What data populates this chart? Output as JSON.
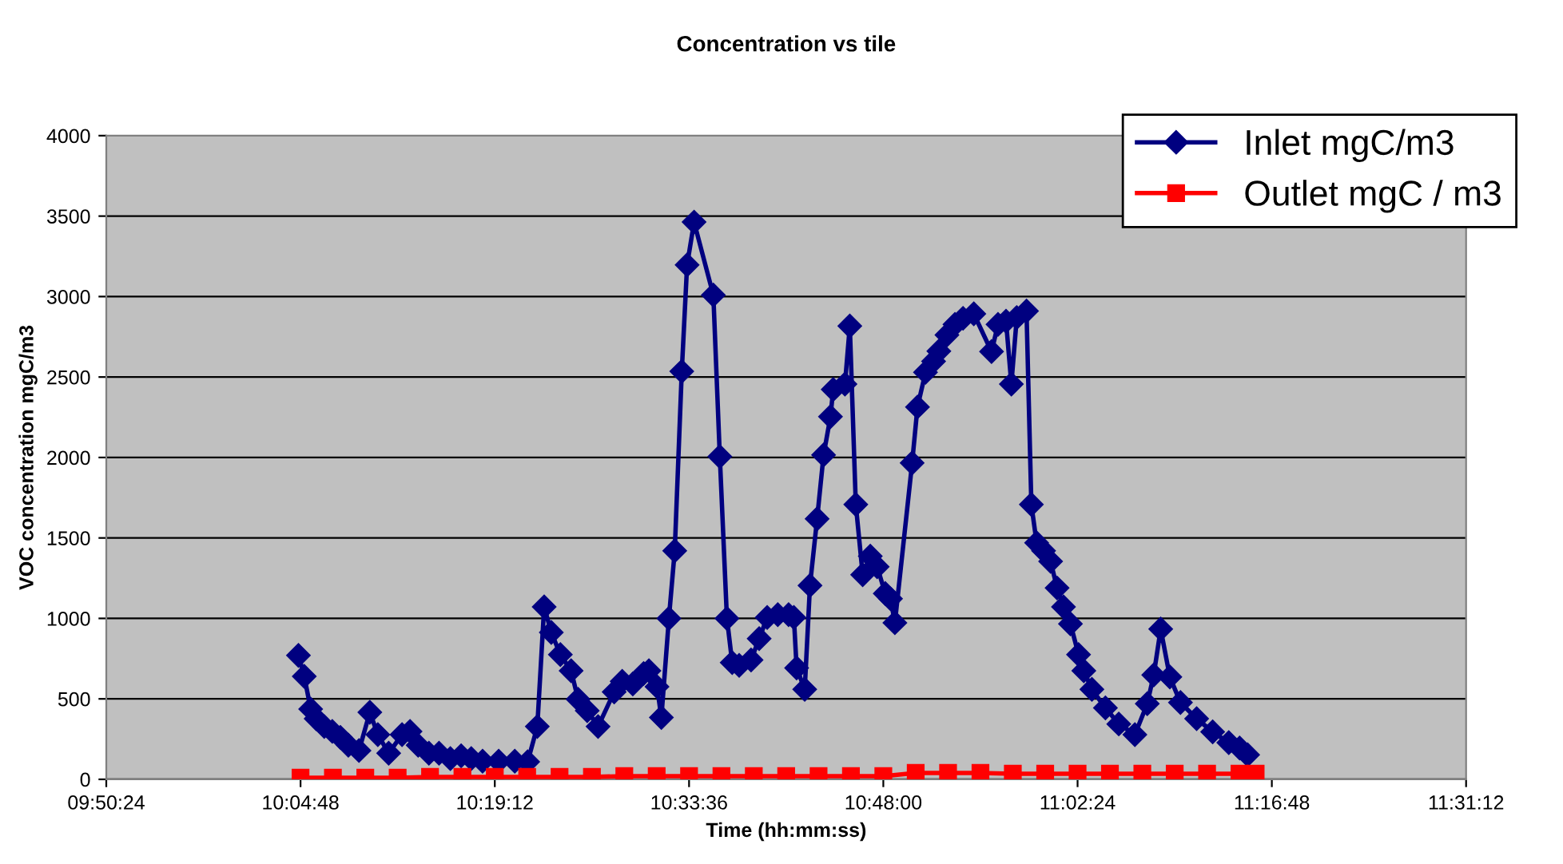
{
  "chart_data": {
    "type": "line",
    "title": "Concentration vs tile",
    "xlabel": "Time (hh:mm:ss)",
    "ylabel": "VOC concentration mgC/m3",
    "xlim": [
      9.84,
      11.52
    ],
    "xticks": [
      {
        "value": 9.84,
        "label": "09:50:24"
      },
      {
        "value": 10.08,
        "label": "10:04:48"
      },
      {
        "value": 10.32,
        "label": "10:19:12"
      },
      {
        "value": 10.56,
        "label": "10:33:36"
      },
      {
        "value": 10.8,
        "label": "10:48:00"
      },
      {
        "value": 11.04,
        "label": "11:02:24"
      },
      {
        "value": 11.28,
        "label": "11:16:48"
      },
      {
        "value": 11.52,
        "label": "11:31:12"
      }
    ],
    "ylim": [
      0,
      4000
    ],
    "yticks": [
      0,
      500,
      1000,
      1500,
      2000,
      2500,
      3000,
      3500,
      4000
    ],
    "grid": "y",
    "legend": "top right",
    "series": [
      {
        "name": "Inlet mgC/m3",
        "color": "#000080",
        "marker": "diamond",
        "x": [
          10.0774,
          10.0846,
          10.0925,
          10.0993,
          10.1093,
          10.1192,
          10.1292,
          10.1391,
          10.1522,
          10.1656,
          10.1755,
          10.1889,
          10.2054,
          10.2153,
          10.2253,
          10.2386,
          10.2511,
          10.2651,
          10.2784,
          10.2909,
          10.3049,
          10.3248,
          10.3447,
          10.3606,
          10.3725,
          10.381,
          10.3898,
          10.401,
          10.4143,
          10.4229,
          10.4342,
          10.4476,
          10.4675,
          10.4774,
          10.4905,
          10.5039,
          10.5104,
          10.5204,
          10.5258,
          10.5351,
          10.5423,
          10.551,
          10.5576,
          10.5662,
          10.59,
          10.598,
          10.6068,
          10.6133,
          10.6219,
          10.6366,
          10.6466,
          10.6565,
          10.6696,
          10.683,
          10.6895,
          10.6929,
          10.7029,
          10.7094,
          10.7182,
          10.7262,
          10.7347,
          10.7381,
          10.7526,
          10.7586,
          10.766,
          10.7745,
          10.7839,
          10.7924,
          10.8024,
          10.8089,
          10.8143,
          10.8356,
          10.8422,
          10.8521,
          10.8621,
          10.8686,
          10.8786,
          10.8885,
          10.8985,
          10.9118,
          10.9337,
          10.9417,
          10.9516,
          10.9582,
          10.9649,
          10.9769,
          10.9829,
          10.9894,
          10.998,
          11.0067,
          11.0147,
          11.0226,
          11.0312,
          11.0412,
          11.0477,
          11.0577,
          11.0744,
          11.0909,
          11.1108,
          11.1261,
          11.1341,
          11.1427,
          11.154,
          11.1671,
          11.1871,
          11.2069,
          11.2268,
          11.2402,
          11.2501
        ],
        "values": [
          770,
          640,
          437,
          377,
          328,
          298,
          261,
          212,
          179,
          417,
          278,
          162,
          278,
          298,
          212,
          162,
          162,
          129,
          146,
          129,
          113,
          113,
          113,
          109,
          328,
          1072,
          913,
          775,
          675,
          497,
          427,
          328,
          543,
          609,
          593,
          658,
          675,
          576,
          384,
          1000,
          1420,
          2535,
          3197,
          3463,
          3009,
          2006,
          1000,
          725,
          708,
          742,
          874,
          1006,
          1023,
          1023,
          1006,
          692,
          559,
          1205,
          1619,
          2016,
          2254,
          2423,
          2456,
          2817,
          1708,
          1271,
          1387,
          1321,
          1155,
          1122,
          973,
          1966,
          2314,
          2529,
          2598,
          2661,
          2761,
          2827,
          2865,
          2893,
          2658,
          2827,
          2847,
          2456,
          2870,
          2910,
          1708,
          1470,
          1420,
          1354,
          1189,
          1072,
          966,
          775,
          675,
          559,
          444,
          344,
          278,
          470,
          649,
          934,
          636,
          477,
          377,
          295,
          228,
          195,
          152
        ]
      },
      {
        "name": "Outlet mgC / m3",
        "color": "#ff0000",
        "marker": "square",
        "x": [
          10.08,
          10.12,
          10.16,
          10.2,
          10.24,
          10.28,
          10.32,
          10.36,
          10.4,
          10.44,
          10.48,
          10.52,
          10.56,
          10.6,
          10.64,
          10.68,
          10.72,
          10.76,
          10.8,
          10.84,
          10.88,
          10.92,
          10.96,
          11.0,
          11.04,
          11.08,
          11.12,
          11.16,
          11.2,
          11.24,
          11.26
        ],
        "values": [
          10,
          10,
          10,
          10,
          15,
          15,
          15,
          15,
          15,
          15,
          20,
          20,
          20,
          20,
          20,
          20,
          20,
          20,
          20,
          40,
          40,
          40,
          35,
          35,
          35,
          35,
          35,
          35,
          35,
          35,
          35
        ]
      }
    ]
  }
}
